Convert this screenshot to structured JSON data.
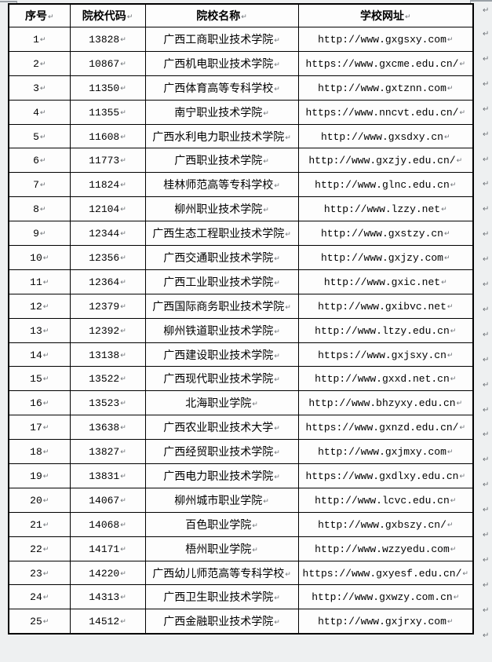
{
  "page": {
    "background": "#eef0f1",
    "cell_background": "#fdfdfd",
    "border_color": "#000000",
    "mark_color": "#6d7277"
  },
  "marks": {
    "end_of_cell": "↵",
    "end_of_row": "↵"
  },
  "table": {
    "headers": {
      "no": "序号",
      "code": "院校代码",
      "name": "院校名称",
      "url": "学校网址"
    },
    "rows": [
      {
        "no": "1",
        "code": "13828",
        "name": "广西工商职业技术学院",
        "url": "http://www.gxgsxy.com"
      },
      {
        "no": "2",
        "code": "10867",
        "name": "广西机电职业技术学院",
        "url": "https://www.gxcme.edu.cn/"
      },
      {
        "no": "3",
        "code": "11350",
        "name": "广西体育高等专科学校",
        "url": "http://www.gxtznn.com"
      },
      {
        "no": "4",
        "code": "11355",
        "name": "南宁职业技术学院",
        "url": "https://www.nncvt.edu.cn/"
      },
      {
        "no": "5",
        "code": "11608",
        "name": "广西水利电力职业技术学院",
        "url": "http://www.gxsdxy.cn"
      },
      {
        "no": "6",
        "code": "11773",
        "name": "广西职业技术学院",
        "url": "http://www.gxzjy.edu.cn/"
      },
      {
        "no": "7",
        "code": "11824",
        "name": "桂林师范高等专科学校",
        "url": "http://www.glnc.edu.cn"
      },
      {
        "no": "8",
        "code": "12104",
        "name": "柳州职业技术学院",
        "url": "http://www.lzzy.net"
      },
      {
        "no": "9",
        "code": "12344",
        "name": "广西生态工程职业技术学院",
        "url": "http://www.gxstzy.cn"
      },
      {
        "no": "10",
        "code": "12356",
        "name": "广西交通职业技术学院",
        "url": "http://www.gxjzy.com"
      },
      {
        "no": "11",
        "code": "12364",
        "name": "广西工业职业技术学院",
        "url": "http://www.gxic.net"
      },
      {
        "no": "12",
        "code": "12379",
        "name": "广西国际商务职业技术学院",
        "url": "http://www.gxibvc.net"
      },
      {
        "no": "13",
        "code": "12392",
        "name": "柳州铁道职业技术学院",
        "url": "http://www.ltzy.edu.cn"
      },
      {
        "no": "14",
        "code": "13138",
        "name": "广西建设职业技术学院",
        "url": "https://www.gxjsxy.cn"
      },
      {
        "no": "15",
        "code": "13522",
        "name": "广西现代职业技术学院",
        "url": "http://www.gxxd.net.cn"
      },
      {
        "no": "16",
        "code": "13523",
        "name": "北海职业学院",
        "url": "http://www.bhzyxy.edu.cn"
      },
      {
        "no": "17",
        "code": "13638",
        "name": "广西农业职业技术大学",
        "url": "https://www.gxnzd.edu.cn/"
      },
      {
        "no": "18",
        "code": "13827",
        "name": "广西经贸职业技术学院",
        "url": "http://www.gxjmxy.com"
      },
      {
        "no": "19",
        "code": "13831",
        "name": "广西电力职业技术学院",
        "url": "https://www.gxdlxy.edu.cn"
      },
      {
        "no": "20",
        "code": "14067",
        "name": "柳州城市职业学院",
        "url": "http://www.lcvc.edu.cn"
      },
      {
        "no": "21",
        "code": "14068",
        "name": "百色职业学院",
        "url": "http://www.gxbszy.cn/"
      },
      {
        "no": "22",
        "code": "14171",
        "name": "梧州职业学院",
        "url": "http://www.wzzyedu.com"
      },
      {
        "no": "23",
        "code": "14220",
        "name": "广西幼儿师范高等专科学校",
        "url": "https://www.gxyesf.edu.cn/"
      },
      {
        "no": "24",
        "code": "14313",
        "name": "广西卫生职业技术学院",
        "url": "http://www.gxwzy.com.cn"
      },
      {
        "no": "25",
        "code": "14512",
        "name": "广西金融职业技术学院",
        "url": "http://www.gxjrxy.com"
      }
    ]
  }
}
